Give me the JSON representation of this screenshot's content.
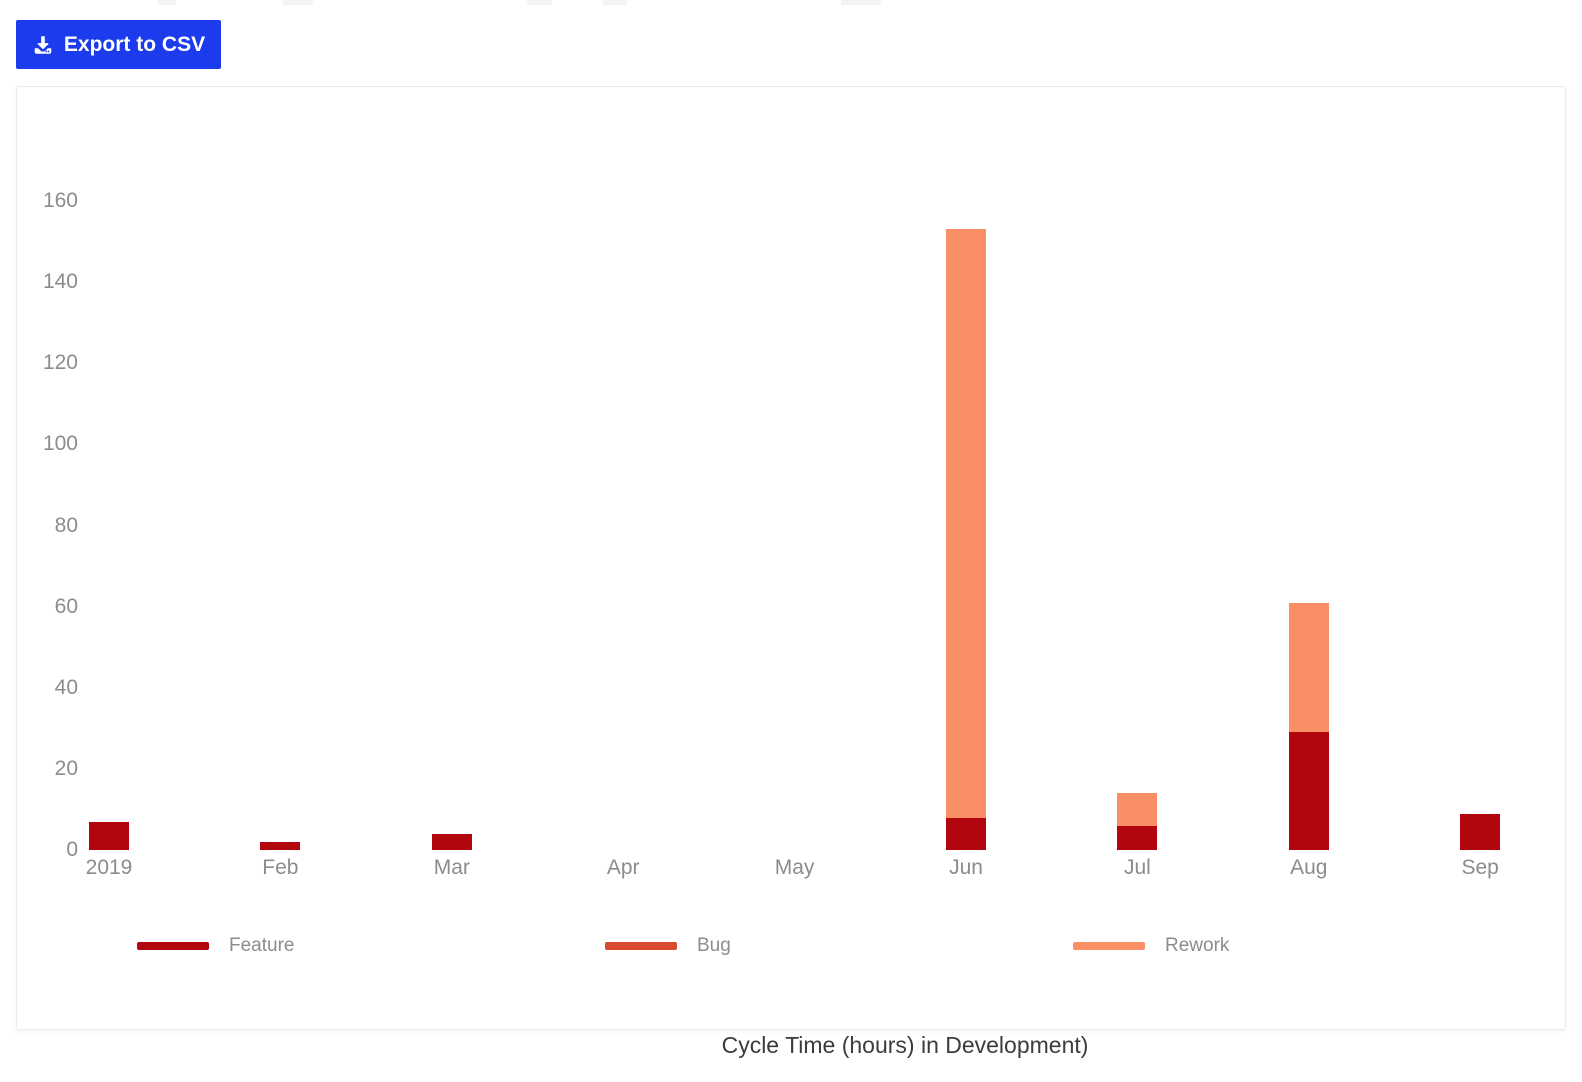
{
  "toolbar": {
    "export_label": "Export to CSV"
  },
  "colors": {
    "button_bg": "#1c3bec",
    "button_text": "#ffffff",
    "feature": "#b2060f",
    "bug": "#d94a33",
    "rework": "#fa8f66",
    "axis_text": "#8f8b88",
    "legend_text": "#8c8c8c",
    "title_text": "#3c3c3c",
    "card_border": "#ebebeb"
  },
  "chart_data": {
    "type": "bar",
    "stacked": true,
    "title": "Cycle Time (hours) in Development)",
    "categories": [
      "2019",
      "Feb",
      "Mar",
      "Apr",
      "May",
      "Jun",
      "Jul",
      "Aug",
      "Sep"
    ],
    "series": [
      {
        "name": "Feature",
        "color": "#b2060f",
        "values": [
          7,
          2,
          4,
          0,
          0,
          8,
          6,
          29,
          9
        ]
      },
      {
        "name": "Bug",
        "color": "#d94a33",
        "values": [
          0,
          0,
          0,
          0,
          0,
          0,
          0,
          0,
          0
        ]
      },
      {
        "name": "Rework",
        "color": "#fa8f66",
        "values": [
          0,
          0,
          0,
          0,
          0,
          145,
          8,
          32,
          0
        ]
      }
    ],
    "xlabel": "",
    "ylabel": "",
    "ylim": [
      0,
      160
    ],
    "yticks": [
      0,
      20,
      40,
      60,
      80,
      100,
      120,
      140,
      160
    ],
    "grid": false,
    "legend_position": "bottom",
    "legend": [
      "Feature",
      "Bug",
      "Rework"
    ]
  }
}
